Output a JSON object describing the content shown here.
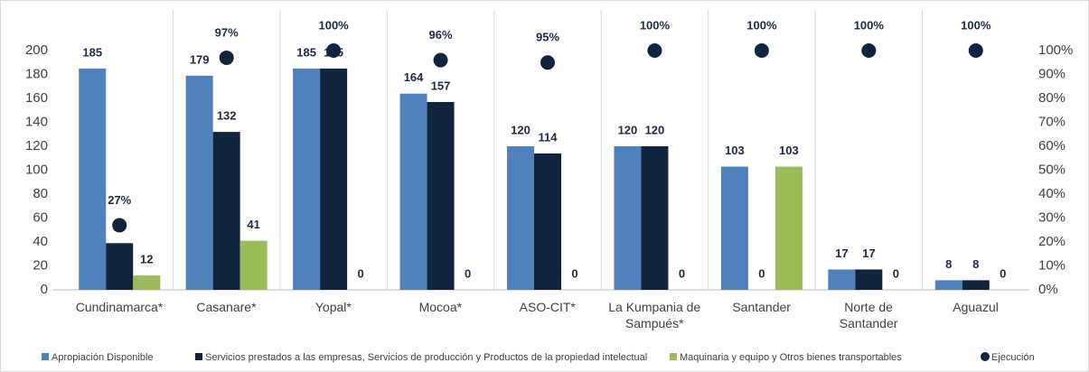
{
  "chart_data": {
    "type": "bar",
    "categories": [
      "Cundinamarca*",
      "Casanare*",
      "Yopal*",
      "Mocoa*",
      "ASO-CIT*",
      "La Kumpania de Sampués*",
      "Santander",
      "Norte de Santander",
      "Aguazul"
    ],
    "series": [
      {
        "name": "Apropiación Disponible",
        "color": "#4f81bd",
        "values": [
          185,
          179,
          185,
          164,
          120,
          120,
          103,
          17,
          8
        ]
      },
      {
        "name": "Servicios prestados a las empresas, Servicios de producción y Productos de la propiedad intelectual",
        "color": "#10243e",
        "values": [
          39,
          132,
          185,
          157,
          114,
          120,
          0,
          17,
          8
        ]
      },
      {
        "name": "Maquinaria y equipo y Otros bienes transportables",
        "color": "#9bbb59",
        "values": [
          12,
          41,
          0,
          0,
          0,
          0,
          103,
          0,
          0
        ]
      },
      {
        "name": "Ejecución",
        "color": "#10243e",
        "axis": "y2",
        "values": [
          27,
          97,
          100,
          96,
          95,
          100,
          100,
          100,
          100
        ],
        "value_labels": [
          "27%",
          "97%",
          "100%",
          "96%",
          "95%",
          "100%",
          "100%",
          "100%",
          "100%"
        ]
      }
    ],
    "ylim": [
      0,
      200
    ],
    "yticks": [
      0,
      20,
      40,
      60,
      80,
      100,
      120,
      140,
      160,
      180,
      200
    ],
    "y2lim": [
      0,
      100
    ],
    "y2ticks": [
      {
        "value": 0,
        "label": "0%"
      },
      {
        "value": 10,
        "label": "10%"
      },
      {
        "value": 20,
        "label": "20%"
      },
      {
        "value": 30,
        "label": "30%"
      },
      {
        "value": 40,
        "label": "40%"
      },
      {
        "value": 50,
        "label": "50%"
      },
      {
        "value": 60,
        "label": "60%"
      },
      {
        "value": 70,
        "label": "70%"
      },
      {
        "value": 80,
        "label": "80%"
      },
      {
        "value": 90,
        "label": "90%"
      },
      {
        "value": 100,
        "label": "100%"
      }
    ],
    "legend": "bottom"
  }
}
